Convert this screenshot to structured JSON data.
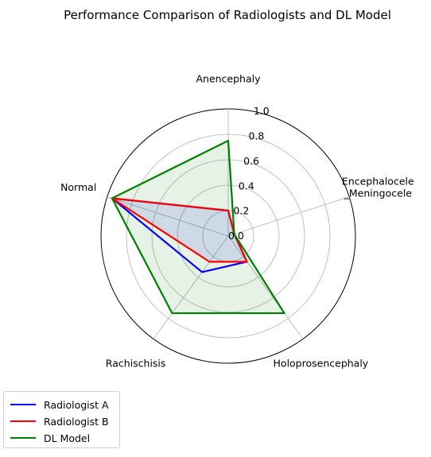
{
  "chart_data": {
    "type": "radar",
    "title": "Performance Comparison of Radiologists and DL Model",
    "categories": [
      "Anencephaly",
      "Encephalocele\n_Meningocele",
      "Holoprosencephaly",
      "Rachischisis",
      "Normal"
    ],
    "rlim": [
      0,
      1.0
    ],
    "rticks": [
      0.0,
      0.2,
      0.4,
      0.6,
      0.8,
      1.0
    ],
    "rtick_labels": [
      "0.0",
      "0.2",
      "0.4",
      "0.6",
      "0.8",
      "1.0"
    ],
    "grid": true,
    "legend_position": "bottom-left",
    "series": [
      {
        "name": "Radiologist A",
        "values": [
          0.2,
          0.05,
          0.25,
          0.35,
          0.96
        ],
        "color": "#0000ff",
        "fill": false
      },
      {
        "name": "Radiologist B",
        "values": [
          0.2,
          0.05,
          0.25,
          0.25,
          0.96
        ],
        "color": "#ff0000",
        "fill": true,
        "fill_color": "#0000ff"
      },
      {
        "name": "DL Model",
        "values": [
          0.75,
          0.05,
          0.75,
          0.75,
          0.96
        ],
        "color": "#008000",
        "fill": true,
        "fill_color": "#008000"
      }
    ]
  }
}
